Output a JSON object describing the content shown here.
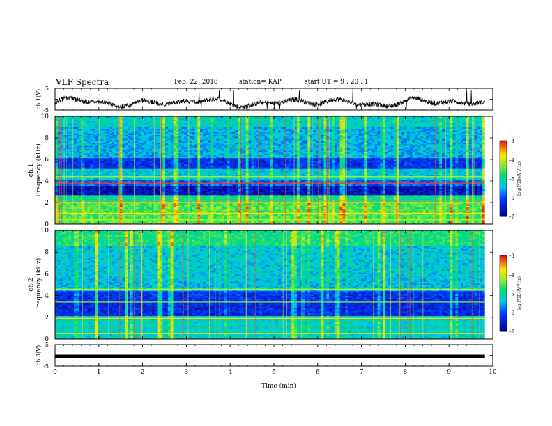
{
  "header": {
    "title": "VLF Spectra",
    "date": "Feb. 22, 2018",
    "station": "station= KAP",
    "start": "start UT =  9 : 20 : 1"
  },
  "chart_data": [
    {
      "type": "line",
      "panel": "ch1-waveform",
      "ylabel": "ch.1(V)",
      "ylim": [
        -5,
        5
      ],
      "yticks": [
        "5",
        "-5"
      ],
      "xlim": [
        0,
        10
      ],
      "color": "#000000"
    },
    {
      "type": "heatmap",
      "panel": "ch1-spectrogram",
      "ylabel": "ch.1 Frequency (kHz)",
      "ylim": [
        0,
        10
      ],
      "yticks": [
        "0",
        "2",
        "4",
        "6",
        "8",
        "10"
      ],
      "xlim": [
        0,
        10
      ],
      "colorbar": {
        "label": "log(PSD)(V²/Hz)",
        "range": [
          -7,
          -3
        ],
        "ticks": [
          "-3",
          "-4",
          "-5",
          "-6",
          "-7"
        ]
      }
    },
    {
      "type": "heatmap",
      "panel": "ch2-spectrogram",
      "ylabel": "ch.2 Frequency (kHz)",
      "ylim": [
        0,
        10
      ],
      "yticks": [
        "0",
        "2",
        "4",
        "6",
        "8",
        "10"
      ],
      "xlim": [
        0,
        10
      ],
      "colorbar": {
        "label": "log(PSD)(V²/Hz)",
        "range": [
          -7,
          -3
        ],
        "ticks": [
          "-3",
          "-4",
          "-5",
          "-6",
          "-7"
        ]
      }
    },
    {
      "type": "line",
      "panel": "ch3-waveform",
      "ylabel": "ch.3(V)",
      "ylim": [
        -5,
        5
      ],
      "yticks": [
        "5",
        "-5"
      ],
      "xlim": [
        0,
        10
      ],
      "xlabel": "Time (min)",
      "xticks": [
        "0",
        "1",
        "2",
        "3",
        "4",
        "5",
        "6",
        "7",
        "8",
        "9",
        "10"
      ],
      "values_constant": -0.5,
      "color": "#000000"
    }
  ]
}
